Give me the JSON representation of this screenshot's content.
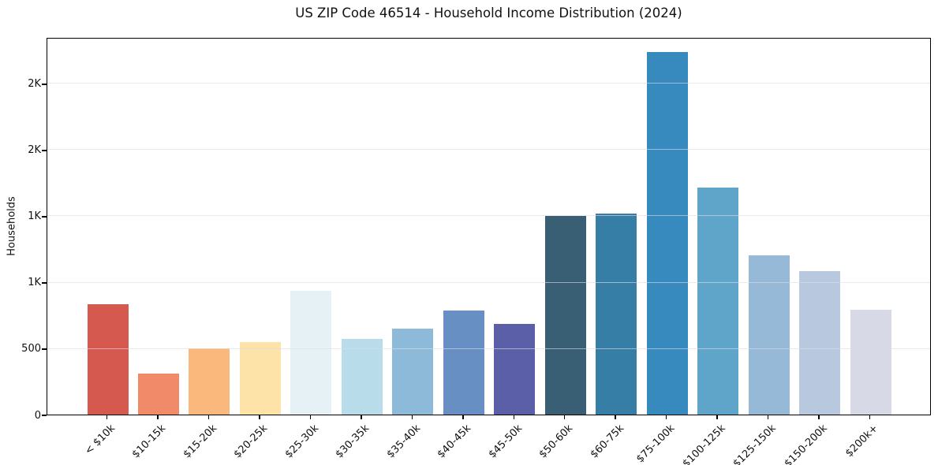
{
  "title": "US ZIP Code 46514 - Household Income Distribution (2024)",
  "chart_data": {
    "type": "bar",
    "title": "US ZIP Code 46514 - Household Income Distribution (2024)",
    "xlabel": "",
    "ylabel": "Households",
    "categories": [
      "< $10k",
      "$10-15k",
      "$15-20k",
      "$20-25k",
      "$25-30k",
      "$30-35k",
      "$35-40k",
      "$40-45k",
      "$45-50k",
      "$50-60k",
      "$60-75k",
      "$75-100k",
      "$100-125k",
      "$125-150k",
      "$150-200k",
      "$200k+"
    ],
    "values": [
      833,
      310,
      500,
      548,
      934,
      574,
      649,
      787,
      683,
      1498,
      1517,
      2738,
      1712,
      1200,
      1083,
      790
    ],
    "bar_colors": [
      "#d6594f",
      "#f08a68",
      "#fbb87d",
      "#fde3a7",
      "#e5f1f5",
      "#b8dcea",
      "#8ebad9",
      "#688fc3",
      "#5a5fa8",
      "#395f74",
      "#377ea6",
      "#368abd",
      "#5ea5c9",
      "#96b9d7",
      "#b8c8de",
      "#d7d9e6"
    ],
    "ylim": [
      0,
      2851
    ],
    "yticks": {
      "values": [
        0,
        500,
        1000,
        1500,
        2000,
        2500
      ],
      "labels": [
        "0",
        "500",
        "1K",
        "1K",
        "2K",
        "2K"
      ]
    },
    "grid": "horizontal",
    "gridline_color": "#e8e8ee",
    "legend": "none",
    "xtick_rotation_deg": 45,
    "axis_color": "#000000"
  },
  "layout_note_colors": {
    "background": "#ffffff",
    "text": "#111111"
  }
}
